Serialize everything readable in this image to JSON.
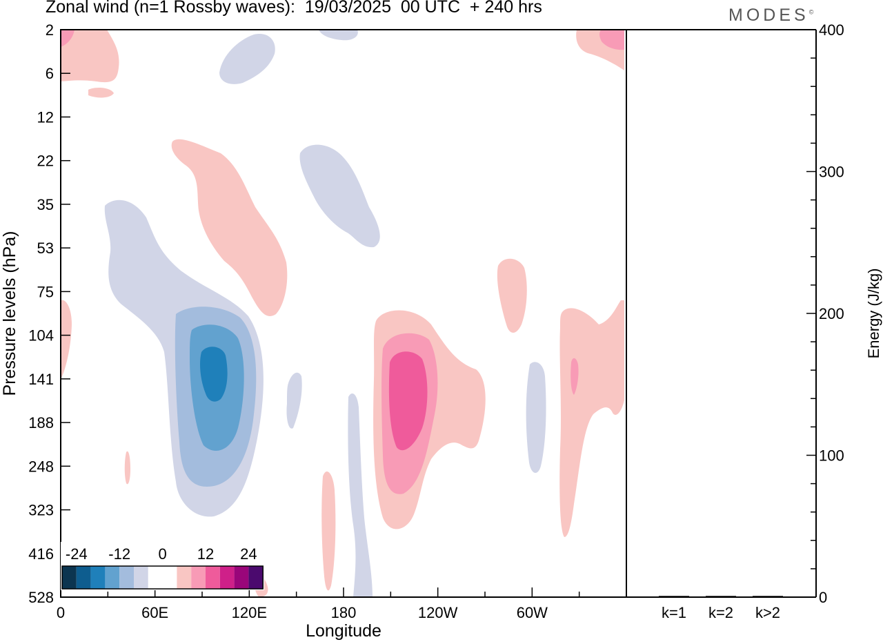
{
  "title": "Zonal wind (n=1 Rossby waves):  19/03/2025  00 UTC  + 240 hrs",
  "brand": "MODES",
  "brand_mark": "©",
  "colors": {
    "neg": [
      "#0c3550",
      "#0e5d8f",
      "#1f80ba",
      "#62a2cf",
      "#a3bcdd",
      "#d1d5e7"
    ],
    "zero": "#ffffff",
    "pos": [
      "#f9c6c3",
      "#f89bb6",
      "#ef5b9b",
      "#cf2089",
      "#9a067a",
      "#4b0a6e"
    ],
    "axis": "#000000"
  },
  "chart_data": [
    {
      "type": "heatmap",
      "title": "Zonal wind (n=1 Rossby waves):  19/03/2025  00 UTC  + 240 hrs",
      "xlabel": "Longitude",
      "ylabel": "Pressure levels (hPa)",
      "x_ticks": [
        "0",
        "60E",
        "120E",
        "180",
        "120W",
        "60W"
      ],
      "x_tick_values": [
        0,
        60,
        120,
        180,
        240,
        300
      ],
      "xlim": [
        0,
        360
      ],
      "y_ticks": [
        "2",
        "6",
        "12",
        "22",
        "35",
        "53",
        "75",
        "104",
        "141",
        "188",
        "248",
        "323",
        "416",
        "528"
      ],
      "y_scale": "pressure levels (inverted)",
      "colorbar": {
        "tick_labels": [
          "-24",
          "-12",
          "0",
          "12",
          "24"
        ],
        "levels": [
          -28,
          -24,
          -20,
          -16,
          -12,
          -8,
          -4,
          4,
          8,
          12,
          16,
          20,
          24,
          28
        ]
      },
      "features": [
        {
          "sign": "negative",
          "max_level": -16,
          "lon": 95,
          "pressure": 141
        },
        {
          "sign": "negative",
          "max_level": -4,
          "lon": 35,
          "pressure": 53
        },
        {
          "sign": "negative",
          "max_level": -4,
          "lon": 195,
          "pressure": 30
        },
        {
          "sign": "negative",
          "max_level": -4,
          "lon": 120,
          "pressure": 6
        },
        {
          "sign": "negative",
          "max_level": -4,
          "lon": 300,
          "pressure": 188
        },
        {
          "sign": "negative",
          "max_level": -4,
          "lon": 188,
          "pressure": 323
        },
        {
          "sign": "negative",
          "max_level": -4,
          "lon": 150,
          "pressure": 170
        },
        {
          "sign": "positive",
          "max_level": 12,
          "lon": 210,
          "pressure": 160
        },
        {
          "sign": "positive",
          "max_level": 4,
          "lon": 110,
          "pressure": 45
        },
        {
          "sign": "positive",
          "max_level": 4,
          "lon": 340,
          "pressure": 150
        },
        {
          "sign": "positive",
          "max_level": 4,
          "lon": 285,
          "pressure": 85
        },
        {
          "sign": "positive",
          "max_level": 4,
          "lon": 20,
          "pressure": 5
        },
        {
          "sign": "positive",
          "max_level": 8,
          "lon": 355,
          "pressure": 3
        },
        {
          "sign": "positive",
          "max_level": 4,
          "lon": 170,
          "pressure": 330
        }
      ]
    },
    {
      "type": "bar",
      "categories": [
        "k=1",
        "k=2",
        "k>2"
      ],
      "values": [
        0,
        0,
        0
      ],
      "ylabel": "Energy (J/kg)",
      "ylim": [
        0,
        400
      ],
      "y_ticks": [
        0,
        100,
        200,
        300,
        400
      ]
    }
  ]
}
